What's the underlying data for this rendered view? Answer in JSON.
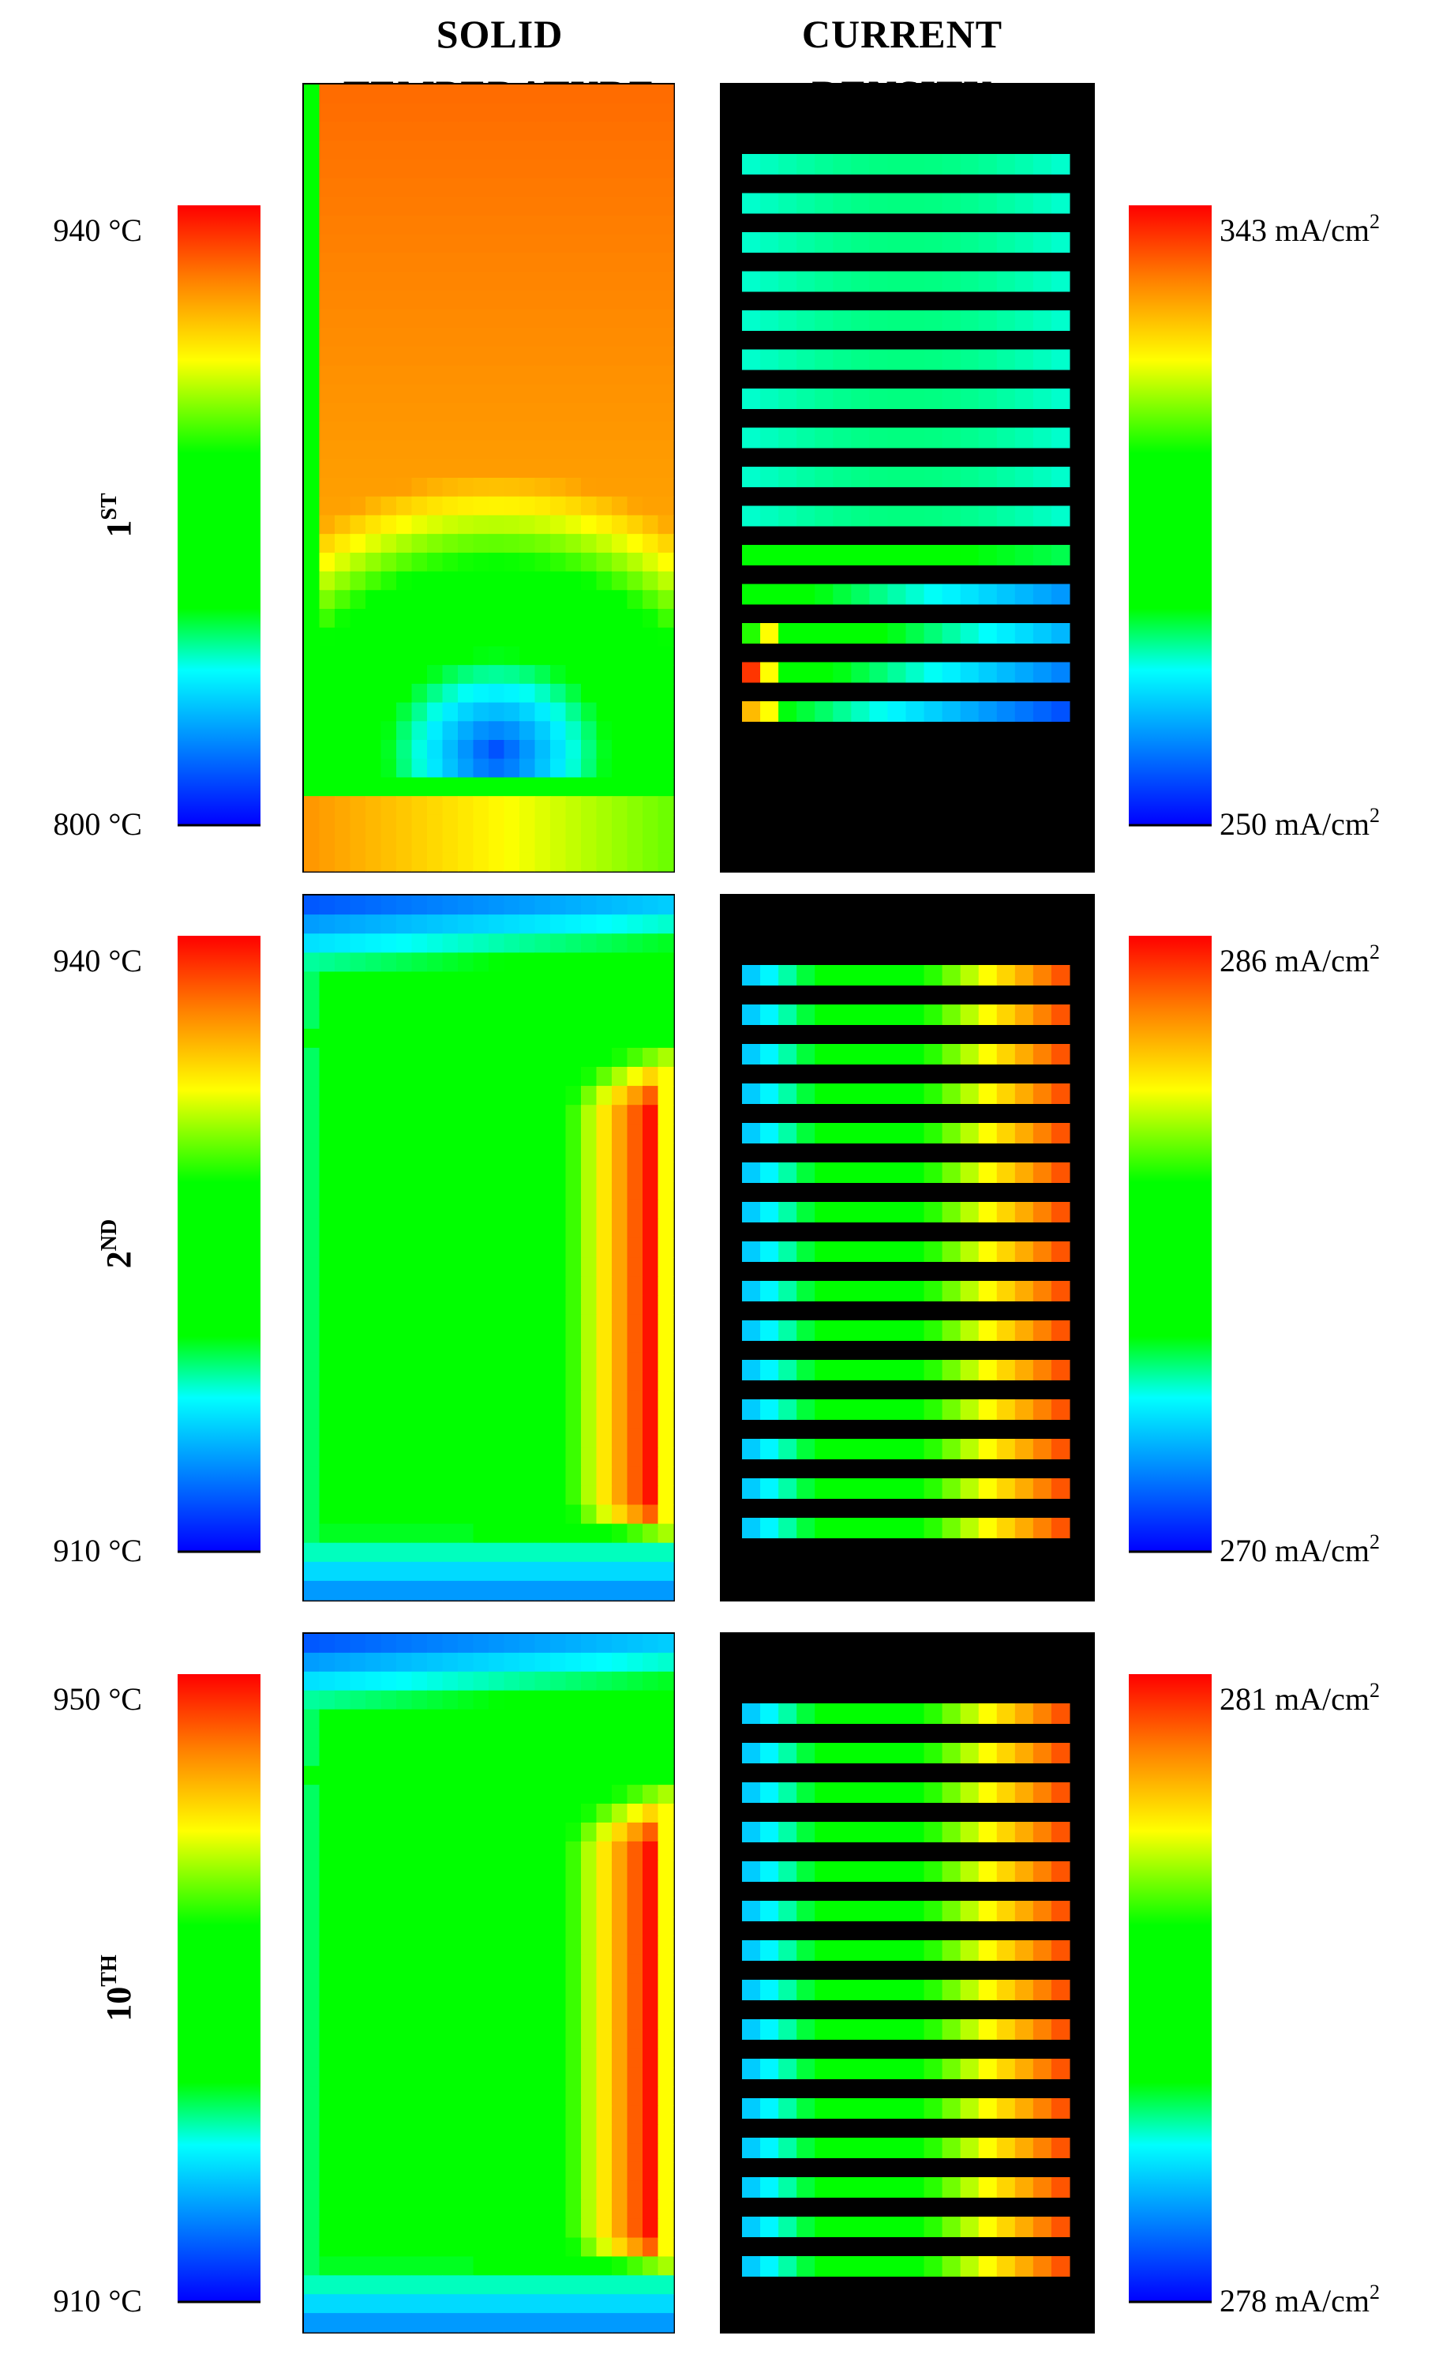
{
  "headers": {
    "temperature": [
      "SOLID",
      "TEMPERATURE"
    ],
    "current": [
      "CURRENT",
      "DENSITY"
    ]
  },
  "chart_data": [
    {
      "type": "heatmap",
      "row_label": {
        "base": "1",
        "sup": "ST"
      },
      "temperature_scale": {
        "min": 800,
        "max": 940,
        "min_label": "800 °C",
        "max_label": "940 °C",
        "unit": "°C"
      },
      "current_scale": {
        "min": 250,
        "max": 343,
        "min_label": "250 mA/cm",
        "max_label": "343 mA/cm",
        "unit_sup": "2"
      },
      "current_channels": 15
    },
    {
      "type": "heatmap",
      "row_label": {
        "base": "2",
        "sup": "ND"
      },
      "temperature_scale": {
        "min": 910,
        "max": 940,
        "min_label": "910 °C",
        "max_label": "940 °C",
        "unit": "°C"
      },
      "current_scale": {
        "min": 270,
        "max": 286,
        "min_label": "270 mA/cm",
        "max_label": "286 mA/cm",
        "unit_sup": "2"
      },
      "current_channels": 15
    },
    {
      "type": "heatmap",
      "row_label": {
        "base": "10",
        "sup": "TH"
      },
      "temperature_scale": {
        "min": 910,
        "max": 950,
        "min_label": "910 °C",
        "max_label": "950 °C",
        "unit": "°C"
      },
      "current_scale": {
        "min": 278,
        "max": 281,
        "min_label": "278 mA/cm",
        "max_label": "281 mA/cm",
        "unit_sup": "2"
      },
      "current_channels": 15
    }
  ]
}
